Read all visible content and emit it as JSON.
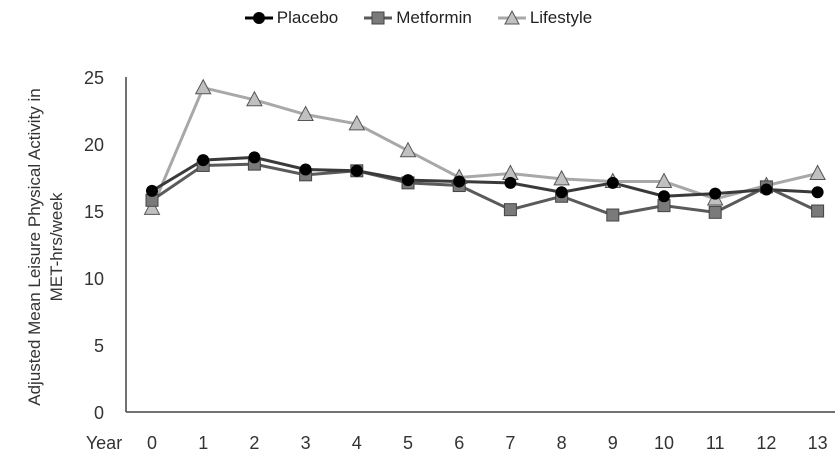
{
  "chart_data": {
    "type": "line",
    "title": "",
    "xlabel": "Year",
    "ylabel": "Adjusted Mean Leisure Physical Activity in MET-hrs/week",
    "ylabel_lines": [
      "Adjusted Mean Leisure Physical Activity in",
      "MET-hrs/week"
    ],
    "x": [
      0,
      1,
      2,
      3,
      4,
      5,
      6,
      7,
      8,
      9,
      10,
      11,
      12,
      13
    ],
    "x_tick_labels": [
      "0",
      "1",
      "2",
      "3",
      "4",
      "5",
      "6",
      "7",
      "8",
      "9",
      "10",
      "11",
      "12",
      "13"
    ],
    "y_ticks": [
      "0",
      "5",
      "10",
      "15",
      "20",
      "25"
    ],
    "ylim": [
      0,
      25
    ],
    "grid": false,
    "legend_position": "top",
    "series": [
      {
        "name": "Placebo",
        "marker": "circle",
        "color": "#000000",
        "line_color": "#3a3a3a",
        "values": [
          16.5,
          18.8,
          19.0,
          18.1,
          18.0,
          17.3,
          17.2,
          17.1,
          16.4,
          17.1,
          16.1,
          16.3,
          16.6,
          16.4
        ]
      },
      {
        "name": "Metformin",
        "marker": "square",
        "color": "#7a7a7a",
        "line_color": "#5a5a5a",
        "values": [
          15.8,
          18.4,
          18.5,
          17.7,
          18.0,
          17.1,
          16.9,
          15.1,
          16.1,
          14.7,
          15.4,
          14.9,
          16.8,
          15.0
        ]
      },
      {
        "name": "Lifestyle",
        "marker": "triangle",
        "color": "#c0c0c0",
        "line_color": "#a8a8a8",
        "values": [
          15.2,
          24.2,
          23.3,
          22.2,
          21.5,
          19.5,
          17.5,
          17.8,
          17.4,
          17.2,
          17.2,
          15.9,
          16.9,
          17.8
        ]
      }
    ]
  }
}
